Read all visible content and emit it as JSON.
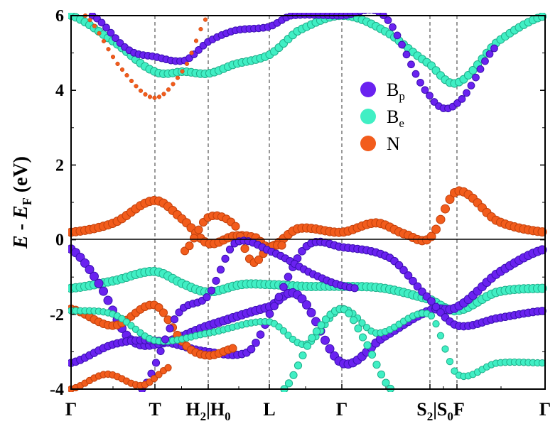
{
  "chart_data": {
    "type": "scatter",
    "subtype": "fat-band structure",
    "ylabel": {
      "main_italic_1": "E",
      "mid": " - ",
      "main_italic_2": "E",
      "sub": "F",
      "unit": " (eV)"
    },
    "ylim": [
      -4,
      6
    ],
    "yticks": [
      "-4",
      "-2",
      "0",
      "2",
      "4",
      "6"
    ],
    "ytick_values": [
      -4,
      -2,
      0,
      2,
      4,
      6
    ],
    "kpoints": [
      {
        "label": "Γ",
        "sub": "",
        "k": 0
      },
      {
        "label": "T",
        "sub": "",
        "k": 1.18
      },
      {
        "label": "H",
        "sub": "2",
        "label2": "|H",
        "sub2": "0",
        "k": 1.93
      },
      {
        "label": "L",
        "sub": "",
        "k": 2.79
      },
      {
        "label": "Γ",
        "sub": "",
        "k": 3.81
      },
      {
        "label": "S",
        "sub": "2",
        "label2": "|S",
        "sub2": "0",
        "label3": "F",
        "k": 5.05
      },
      {
        "label": "",
        "sub": "",
        "k": 5.43
      },
      {
        "label": "Γ",
        "sub": "",
        "k": 6.67
      }
    ],
    "xlim": [
      0,
      6.67
    ],
    "fermi_level": 0,
    "legend": {
      "placement": "upper-right-inside",
      "entries": [
        {
          "name": "B",
          "sub": "p",
          "color": "#6a22f0"
        },
        {
          "name": "B",
          "sub": "e",
          "color": "#40efc4"
        },
        {
          "name": "N",
          "sub": "",
          "color": "#f25c1c"
        }
      ]
    },
    "bands": [
      {
        "character": "N",
        "weight": 1.0,
        "k": [
          0,
          0.6,
          1.18,
          1.6,
          1.93,
          2.3,
          2.6,
          2.79,
          3.2,
          3.81,
          4.3,
          4.7,
          5.05,
          5.43,
          6.0,
          6.67
        ],
        "E": [
          0.2,
          0.45,
          1.05,
          0.5,
          -0.1,
          0.1,
          0.05,
          -0.2,
          0.3,
          0.2,
          0.45,
          0.15,
          0.05,
          1.3,
          0.5,
          0.2
        ]
      },
      {
        "character": "N",
        "weight": 0.9,
        "k": [
          1.6,
          1.93,
          2.3,
          2.55,
          2.79,
          3.0
        ],
        "E": [
          -0.3,
          0.6,
          0.4,
          -0.6,
          -0.2,
          -0.15
        ]
      },
      {
        "character": "Be",
        "weight": 1.0,
        "k": [
          0,
          0.6,
          1.18,
          1.6,
          1.93,
          2.4,
          2.79,
          3.3,
          3.81,
          4.4,
          5.05,
          5.43,
          6.0,
          6.67
        ],
        "E": [
          -1.3,
          -1.1,
          -0.85,
          -1.2,
          -1.4,
          -1.2,
          -1.2,
          -1.25,
          -1.25,
          -1.3,
          -1.6,
          -1.9,
          -1.4,
          -1.3
        ]
      },
      {
        "character": "Bp",
        "weight": 1.0,
        "k": [
          0,
          0.4,
          0.8,
          1.18,
          1.93,
          2.79,
          3.2,
          3.81,
          4.4,
          5.05,
          5.43,
          6.0,
          6.67
        ],
        "E": [
          -0.25,
          -1.2,
          -2.6,
          -2.8,
          -2.3,
          -1.8,
          -1.5,
          -3.3,
          -2.6,
          -1.9,
          -1.8,
          -0.9,
          -0.25
        ]
      },
      {
        "character": "Bp",
        "weight": 0.85,
        "k": [
          0,
          0.6,
          1.18,
          1.93,
          2.5,
          2.79,
          3.3,
          3.81,
          4.5,
          5.05,
          5.43,
          6.0,
          6.67
        ],
        "E": [
          -3.3,
          -2.8,
          -2.7,
          -3.0,
          -3.0,
          -2.0,
          -0.2,
          -0.2,
          -0.5,
          -1.6,
          -2.3,
          -2.1,
          -1.9
        ]
      },
      {
        "character": "N",
        "weight": 0.9,
        "k": [
          0,
          0.6,
          1.18,
          1.6,
          1.93,
          2.3
        ],
        "E": [
          -1.85,
          -2.3,
          -1.75,
          -2.8,
          -3.1,
          -2.9
        ]
      },
      {
        "character": "Be",
        "weight": 0.7,
        "k": [
          0,
          0.6,
          1.18,
          1.93,
          2.79,
          3.3,
          3.81,
          4.3,
          5.05,
          5.43,
          6.0,
          6.67
        ],
        "E": [
          -1.9,
          -2.0,
          -2.7,
          -2.5,
          -2.2,
          -2.8,
          -1.85,
          -2.5,
          -2.0,
          -3.6,
          -3.3,
          -3.3
        ]
      },
      {
        "character": "Be",
        "weight": 0.8,
        "k": [
          3.0,
          3.4,
          3.81,
          4.1,
          4.5
        ],
        "E": [
          -4.0,
          -2.6,
          -1.85,
          -2.6,
          -4.0
        ]
      },
      {
        "character": "Bp",
        "weight": 0.8,
        "k": [
          1.0,
          1.5,
          1.93,
          2.3,
          2.79,
          3.5,
          4.0
        ],
        "E": [
          -4.0,
          -2.0,
          -1.5,
          -0.1,
          -0.3,
          -1.0,
          -1.3
        ]
      },
      {
        "character": "N",
        "weight": 0.7,
        "k": [
          0,
          0.5,
          1.0,
          1.4
        ],
        "E": [
          -4.0,
          -3.6,
          -3.9,
          -3.4
        ]
      },
      {
        "character": "Be",
        "weight": 0.9,
        "k": [
          0,
          0.6,
          1.18,
          1.6,
          1.93,
          2.3,
          2.79,
          3.2,
          3.81,
          4.4,
          5.05,
          5.43,
          6.0,
          6.67
        ],
        "E": [
          6.0,
          5.3,
          4.5,
          4.5,
          4.45,
          4.7,
          4.95,
          5.6,
          6.0,
          5.6,
          4.7,
          4.2,
          5.3,
          6.0
        ]
      },
      {
        "character": "Bp",
        "weight": 0.75,
        "k": [
          0.3,
          0.8,
          1.18,
          1.6,
          1.93,
          2.3,
          2.79,
          3.1,
          3.81,
          4.4,
          5.05,
          5.43,
          6.0
        ],
        "E": [
          6.0,
          5.1,
          4.9,
          4.8,
          5.3,
          5.6,
          5.7,
          6.0,
          6.0,
          6.0,
          3.85,
          3.65,
          5.2
        ]
      },
      {
        "character": "N",
        "weight": 0.3,
        "k": [
          0.2,
          0.7,
          1.18,
          1.6,
          1.93
        ],
        "E": [
          6.0,
          4.6,
          3.8,
          4.6,
          6.0
        ]
      }
    ]
  }
}
